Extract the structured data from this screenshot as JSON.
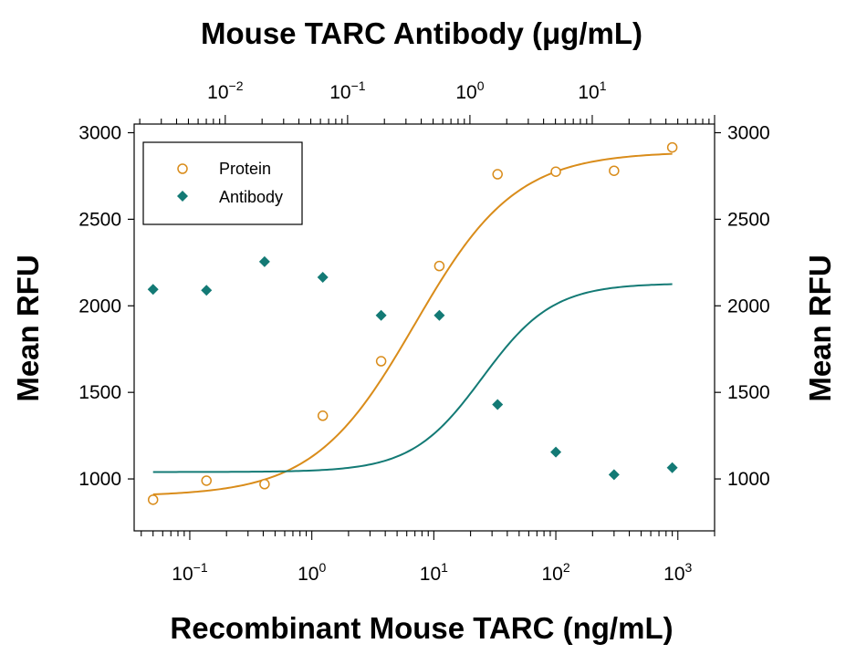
{
  "chart_data": {
    "type": "scatter",
    "title": "",
    "top_axis_label": "Mouse TARC Antibody (μg/mL)",
    "xlabel": "Recombinant Mouse TARC (ng/mL)",
    "ylabel_left": "Mean RFU",
    "ylabel_right": "Mean RFU",
    "x_scale": "log",
    "xlim": [
      0.035,
      2000
    ],
    "ylim": [
      700,
      3050
    ],
    "y_ticks": [
      1000,
      1500,
      2000,
      2500,
      3000
    ],
    "y_tick_labels": [
      "1000",
      "1500",
      "2000",
      "2500",
      "3000"
    ],
    "x_ticks": [
      {
        "base": "10",
        "exp": "−1",
        "value": 0.1
      },
      {
        "base": "10",
        "exp": "0",
        "value": 1
      },
      {
        "base": "10",
        "exp": "1",
        "value": 10
      },
      {
        "base": "10",
        "exp": "2",
        "value": 100
      },
      {
        "base": "10",
        "exp": "3",
        "value": 1000
      }
    ],
    "top_x_scale": "log",
    "top_xlim": [
      0.0018,
      100
    ],
    "top_x_ticks": [
      {
        "base": "10",
        "exp": "−2",
        "value": 0.01
      },
      {
        "base": "10",
        "exp": "−1",
        "value": 0.1
      },
      {
        "base": "10",
        "exp": "0",
        "value": 1
      },
      {
        "base": "10",
        "exp": "1",
        "value": 10
      }
    ],
    "grid": false,
    "legend_position": "top-left",
    "series": [
      {
        "name": "Protein",
        "marker": "open-circle",
        "color": "#d98c1a",
        "x": [
          0.05,
          0.137,
          0.41,
          1.23,
          3.7,
          11.1,
          33.3,
          100,
          300,
          900
        ],
        "y": [
          880,
          990,
          970,
          1365,
          1680,
          2230,
          2760,
          2775,
          2780,
          2915
        ],
        "curve": {
          "bottom": 900,
          "top": 2890,
          "ec50": 7,
          "hill": 1.05
        }
      },
      {
        "name": "Antibody",
        "marker": "filled-diamond",
        "color": "#137a75",
        "x": [
          0.05,
          0.137,
          0.41,
          1.23,
          3.7,
          11.1,
          33.3,
          100,
          300,
          900
        ],
        "y": [
          2095,
          2090,
          2255,
          2165,
          1945,
          1945,
          1430,
          1155,
          1025,
          1065
        ],
        "curve": {
          "bottom": 1040,
          "top": 2130,
          "ec50": 25,
          "hill": 1.5
        }
      }
    ]
  }
}
